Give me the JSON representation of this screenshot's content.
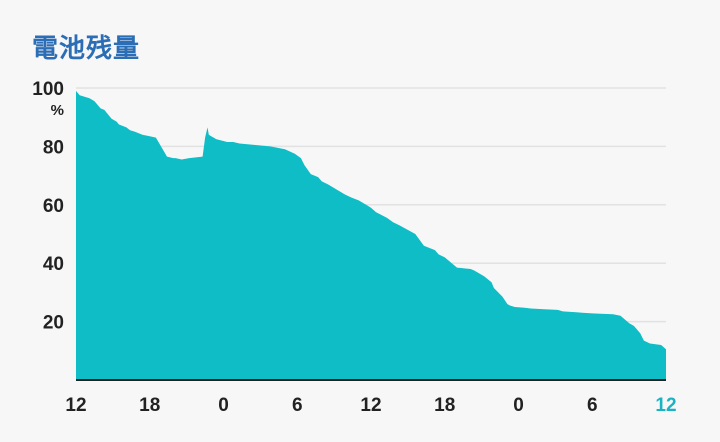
{
  "header": {
    "title": "電池残量"
  },
  "colors": {
    "fill": "#0fbdc6",
    "grid": "#e2e2e2",
    "axis": "#222222",
    "highlight": "#1ab3c4",
    "title": "#2c6eb5"
  },
  "chart_data": {
    "type": "area",
    "title": "電池残量",
    "ylabel_unit": "%",
    "ylim": [
      0,
      100
    ],
    "yticks": [
      "20",
      "40",
      "60",
      "80",
      "100"
    ],
    "xticks": [
      "12",
      "18",
      "0",
      "6",
      "12",
      "18",
      "0",
      "6",
      "12"
    ],
    "xlim_hours": [
      0,
      48
    ],
    "grid": true,
    "series": [
      {
        "x_hours": [
          0,
          0.3,
          1.1,
          1.5,
          2.0,
          2.3,
          2.9,
          3.3,
          3.5,
          4.1,
          4.4,
          4.8,
          5.1,
          5.4,
          6.0,
          6.5,
          7.4,
          7.9,
          8.1,
          8.6,
          9.2,
          10.3,
          10.5,
          10.7,
          10.8,
          11.0,
          11.2,
          11.4,
          12.3,
          12.8,
          12.8,
          13.3,
          14.5,
          15.8,
          17.0,
          17.8,
          18.3,
          18.6,
          19.1,
          19.7,
          20.0,
          20.5,
          21.3,
          21.9,
          22.4,
          23.0,
          23.6,
          24.0,
          24.4,
          25.3,
          25.8,
          26.3,
          27.6,
          28.3,
          29.2,
          29.5,
          30.0,
          31.0,
          32.1,
          32.4,
          33.2,
          33.8,
          34.0,
          34.7,
          35.1,
          35.3,
          35.7,
          36.4,
          37.0,
          38.1,
          39.2,
          39.6,
          40.7,
          41.2,
          42.0,
          43.7,
          44.3,
          45.0,
          45.4,
          45.9,
          46.2,
          46.7,
          47.6,
          48.0
        ],
        "values": [
          99,
          97.5,
          96.5,
          95.5,
          93,
          92.5,
          89.5,
          88.5,
          87.5,
          86.5,
          85.5,
          85,
          84.5,
          84,
          83.5,
          83,
          76.5,
          76,
          76,
          75.5,
          76,
          76.5,
          83,
          86.5,
          84,
          83.5,
          83,
          82.5,
          81.5,
          81.5,
          81.5,
          81,
          80.5,
          80,
          79,
          77.5,
          76,
          73.5,
          70.5,
          69.5,
          68,
          67,
          65,
          63.5,
          62.5,
          61.5,
          60,
          59,
          57.5,
          55.5,
          54,
          53,
          50,
          46,
          44.5,
          43,
          42,
          38.5,
          38,
          37.5,
          35.5,
          33.5,
          31.5,
          28.5,
          26,
          25.5,
          25,
          24.8,
          24.5,
          24.2,
          24,
          23.5,
          23.2,
          23,
          22.8,
          22.5,
          22,
          19.5,
          18.5,
          16,
          13.5,
          12.5,
          12,
          10.5
        ]
      }
    ]
  }
}
